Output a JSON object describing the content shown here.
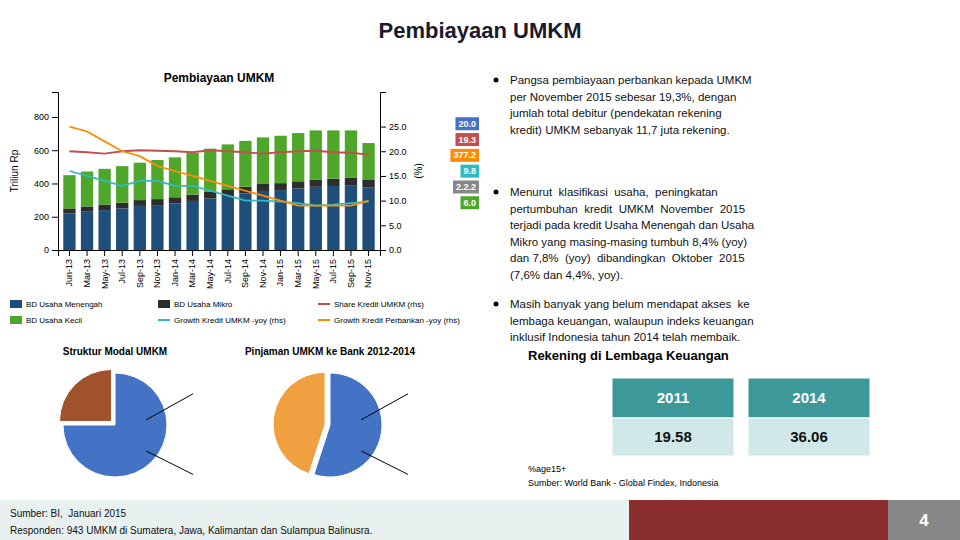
{
  "title": "Pembiayaan UMKM",
  "chart_data": [
    {
      "type": "bar",
      "title": "Pembiayaan UMKM",
      "stacked": true,
      "grid": false,
      "legend": "bottom",
      "y_label": "Triliun Rp",
      "y2_label": "(%)",
      "categories": [
        "Jun-13",
        "Mar-13",
        "May-13",
        "Jul-13",
        "Sep-13",
        "Nov-13",
        "Jan-14",
        "Mar-14",
        "May-14",
        "Jul-14",
        "Sep-14",
        "Nov-14",
        "Jan-15",
        "Mar-15",
        "May-15",
        "Jul-15",
        "Sep-15",
        "Nov-15"
      ],
      "ylim": [
        0,
        950
      ],
      "yticks": [
        0,
        200,
        400,
        600,
        800
      ],
      "y2lim": [
        0,
        32
      ],
      "y2ticks": [
        {
          "value": 0,
          "label": "0.0"
        },
        {
          "value": 5,
          "label": "5.0"
        },
        {
          "value": 10,
          "label": "10.0"
        },
        {
          "value": 15,
          "label": "15.0"
        },
        {
          "value": 20,
          "label": "20.0"
        },
        {
          "value": 25,
          "label": "25.0"
        }
      ],
      "series": [
        {
          "name": "BD Usaha Menengah",
          "type": "bar",
          "color": "#1F4E79",
          "values": [
            220,
            230,
            240,
            250,
            265,
            270,
            280,
            295,
            310,
            325,
            340,
            355,
            360,
            370,
            380,
            385,
            390,
            377
          ]
        },
        {
          "name": "BD Usaha Mikro",
          "type": "bar",
          "color": "#2D2D2D",
          "values": [
            30,
            32,
            33,
            34,
            35,
            36,
            37,
            38,
            39,
            40,
            41,
            42,
            42,
            43,
            44,
            44,
            44,
            44
          ]
        },
        {
          "name": "Share Kredit UMKM (rhs)",
          "type": "line",
          "axis": "y2",
          "color": "#C0504D",
          "values": [
            20.0,
            19.8,
            19.5,
            20.0,
            20.2,
            20.1,
            20.0,
            19.8,
            20.2,
            20.0,
            19.8,
            19.5,
            19.8,
            20.0,
            20.1,
            19.8,
            19.7,
            19.3
          ]
        },
        {
          "name": "BD Usaha Kecil",
          "type": "bar",
          "color": "#4EA72A",
          "values": [
            200,
            210,
            215,
            220,
            225,
            235,
            240,
            250,
            260,
            270,
            275,
            280,
            285,
            290,
            295,
            290,
            285,
            222
          ]
        },
        {
          "name": "Growth Kredit UMKM -yoy (rhs)",
          "type": "line",
          "axis": "y2",
          "color": "#31BAC1",
          "values": [
            16,
            15,
            14,
            13,
            14,
            14,
            13,
            13,
            12,
            11,
            10,
            10,
            9.8,
            9.5,
            9.0,
            9.2,
            9.5,
            9.8
          ]
        },
        {
          "name": "Growth Kredit Perbankan -yoy (rhs)",
          "type": "line",
          "axis": "y2",
          "color": "#FF8C00",
          "values": [
            25,
            24,
            22,
            20,
            19,
            17,
            16,
            15,
            14,
            13,
            12,
            11,
            10,
            9,
            9,
            9,
            9,
            10
          ]
        }
      ],
      "annotations": [
        {
          "text": "20.0",
          "color": "#4472C4"
        },
        {
          "text": "19.3",
          "color": "#C0504D"
        },
        {
          "text": "377.2",
          "color": "#FF8C00"
        },
        {
          "text": "9.8",
          "color": "#31BAC1"
        },
        {
          "text": "2.2.2",
          "color": "#888888"
        },
        {
          "text": "6.0",
          "color": "#4EA72A"
        }
      ]
    },
    {
      "type": "pie",
      "title": "Struktur Modal UMKM",
      "values": [
        75,
        25
      ],
      "colors": [
        "#4472C4",
        "#A0522D"
      ]
    },
    {
      "type": "pie",
      "title": "Pinjaman UMKM ke Bank 2012-2014",
      "values": [
        55,
        45
      ],
      "colors": [
        "#4472C4",
        "#F0A040"
      ]
    }
  ],
  "bullets": [
    "Pangsa pembiayaan perbankan kepada UMKM\nper November 2015 sebesar 19,3%, dengan\njumlah total debitur (pendekatan rekening\nkredit) UMKM sebanyak 11,7 juta rekening.",
    "Menurut  klasifikasi  usaha,  peningkatan\npertumbuhan  kredit  UMKM  November  2015\nterjadi pada kredit Usaha Menengah dan Usaha\nMikro yang masing-masing tumbuh 8,4% (yoy)\ndan 7,8%  (yoy)  dibandingkan  Oktober  2015\n(7,6% dan 4,4%, yoy).",
    "Masih banyak yang belum mendapat akses  ke\nlembaga keuangan, walaupun indeks keuangan\ninklusif Indonesia tahun 2014 telah membaik."
  ],
  "table": {
    "title": "Rekening di Lembaga Keuangan",
    "columns": [
      "2011",
      "2014"
    ],
    "values": [
      19.58,
      36.06
    ],
    "colors": [
      "#3d9999",
      "#d0e8e8"
    ]
  },
  "footnotes": [
    "%age15+",
    "Sumber: World Bank - Global Findex, Indonesia"
  ],
  "footer": {
    "texts": [
      "Sumber: BI,  Januari 2015",
      "Responden: 943 UMKM di Sumatera, Jawa, Kalimantan dan Sulampua Balinusra."
    ],
    "page_number": "4",
    "colors": [
      "#e8f0f0",
      "#8B2E2E",
      "#888888"
    ]
  }
}
